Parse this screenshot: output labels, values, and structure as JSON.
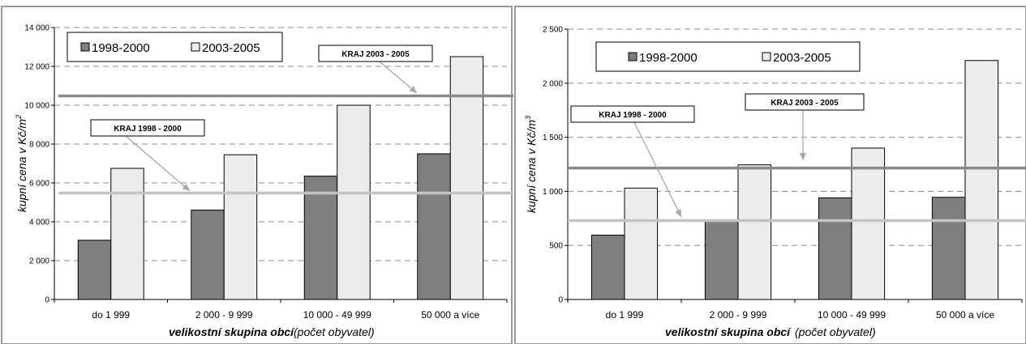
{
  "chart_data": [
    {
      "type": "bar",
      "categories": [
        "do 1 999",
        "2 000 - 9 999",
        "10 000 - 49 999",
        "50 000 a více"
      ],
      "series": [
        {
          "name": "1998-2000",
          "values": [
            3050,
            4600,
            6350,
            7500
          ],
          "color": "#7f7f7f"
        },
        {
          "name": "2003-2005",
          "values": [
            6750,
            7450,
            10000,
            12500
          ],
          "color": "#ececec"
        }
      ],
      "ylim": [
        0,
        14000
      ],
      "yticks": [
        0,
        2000,
        4000,
        6000,
        8000,
        10000,
        12000,
        14000
      ],
      "ytick_labels": [
        "0",
        "2 000",
        "4 000",
        "6 000",
        "8 000",
        "10 000",
        "12 000",
        "14 000"
      ],
      "ylabel_main": "kupní cena v Kč/m",
      "ylabel_sup": "2",
      "xlabel_bold": "velikostní skupina obcí",
      "xlabel_rest": "(počet obyvatel)",
      "grid": "horizontal-dashed",
      "legend_position": "top-left",
      "reference_lines": [
        {
          "label": "KRAJ 1998 - 2000",
          "value": 5480,
          "color": "#c3c3c3"
        },
        {
          "label": "KRAJ 2003 - 2005",
          "value": 10480,
          "color": "#8a8a8a"
        }
      ]
    },
    {
      "type": "bar",
      "categories": [
        "do 1 999",
        "2 000 - 9 999",
        "10 000 - 49 999",
        "50 000 a více"
      ],
      "series": [
        {
          "name": "1998-2000",
          "values": [
            595,
            725,
            940,
            945
          ],
          "color": "#7f7f7f"
        },
        {
          "name": "2003-2005",
          "values": [
            1030,
            1245,
            1400,
            2210
          ],
          "color": "#ececec"
        }
      ],
      "ylim": [
        0,
        2500
      ],
      "yticks": [
        0,
        500,
        1000,
        1500,
        2000,
        2500
      ],
      "ytick_labels": [
        "0",
        "500",
        "1 000",
        "1 500",
        "2 000",
        "2 500"
      ],
      "ylabel_main": "kupní cena v Kč/m",
      "ylabel_sup": "3",
      "xlabel_bold": "velikostní skupina obcí",
      "xlabel_rest": "(počet obyvatel)",
      "grid": "horizontal-dashed",
      "legend_position": "top-left",
      "reference_lines": [
        {
          "label": "KRAJ 1998 - 2000",
          "value": 730,
          "color": "#c3c3c3"
        },
        {
          "label": "KRAJ 2003 - 2005",
          "value": 1215,
          "color": "#8a8a8a"
        }
      ]
    }
  ]
}
